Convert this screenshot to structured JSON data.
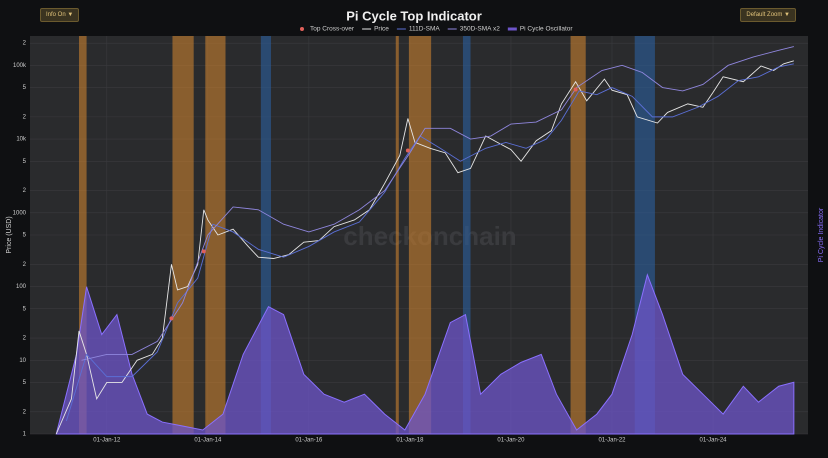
{
  "controls": [
    "Info On ▼",
    "Default Zoom ▼"
  ],
  "chart_data": {
    "type": "line",
    "title": "Pi Cycle Top Indicator",
    "watermark": "checkonchain",
    "y_label": "Price (USD)",
    "y2_label": "Pi Cycle Indicator",
    "log_y": true,
    "grid": true,
    "xlim": [
      2010.48,
      2025.88
    ],
    "xticks": [
      {
        "value": 2012,
        "label": "01-Jan-12"
      },
      {
        "value": 2014,
        "label": "01-Jan-14"
      },
      {
        "value": 2016,
        "label": "01-Jan-16"
      },
      {
        "value": 2018,
        "label": "01-Jan-18"
      },
      {
        "value": 2020,
        "label": "01-Jan-20"
      },
      {
        "value": 2022,
        "label": "01-Jan-22"
      },
      {
        "value": 2024,
        "label": "01-Jan-24"
      }
    ],
    "ylim": [
      1,
      250000
    ],
    "yticks": [
      1,
      2,
      5,
      10,
      {
        "value": 20,
        "label": "2"
      },
      {
        "value": 50,
        "label": "5"
      },
      100,
      {
        "value": 200,
        "label": "2"
      },
      {
        "value": 500,
        "label": "5"
      },
      1000,
      {
        "value": 2000,
        "label": "2"
      },
      {
        "value": 5000,
        "label": "5"
      },
      {
        "value": 10000,
        "label": "10k"
      },
      {
        "value": 20000,
        "label": "2"
      },
      {
        "value": 50000,
        "label": "5"
      },
      {
        "value": 100000,
        "label": "100k"
      },
      {
        "value": 200000,
        "label": "2"
      }
    ],
    "y2lim": [
      0,
      1
    ],
    "shaded_ranges": [
      {
        "x": [
          2011.45,
          2011.6
        ],
        "color": "#c9802e"
      },
      {
        "x": [
          2013.3,
          2013.72
        ],
        "color": "#c9802e"
      },
      {
        "x": [
          2013.95,
          2014.35
        ],
        "color": "#c9802e"
      },
      {
        "x": [
          2015.05,
          2015.25
        ],
        "color": "#2c5f9e"
      },
      {
        "x": [
          2017.72,
          2017.78
        ],
        "color": "#c9802e"
      },
      {
        "x": [
          2017.98,
          2018.42
        ],
        "color": "#c9802e"
      },
      {
        "x": [
          2019.05,
          2019.2
        ],
        "color": "#2c5f9e"
      },
      {
        "x": [
          2021.18,
          2021.48
        ],
        "color": "#c9802e"
      },
      {
        "x": [
          2022.45,
          2022.85
        ],
        "color": "#2c5f9e"
      }
    ],
    "series": [
      {
        "name": "Top Cross-over",
        "type": "scatter",
        "color": "#e0605a",
        "x": [
          2013.28,
          2013.92,
          2017.96,
          2021.28
        ],
        "values": [
          37,
          300,
          7000,
          47000
        ]
      },
      {
        "name": "Price",
        "type": "line",
        "color": "#e6e6e6",
        "x": [
          2011.0,
          2011.3,
          2011.45,
          2011.6,
          2011.8,
          2012.0,
          2012.3,
          2012.6,
          2012.9,
          2013.1,
          2013.28,
          2013.4,
          2013.6,
          2013.8,
          2013.92,
          2014.0,
          2014.2,
          2014.5,
          2014.8,
          2015.0,
          2015.3,
          2015.6,
          2015.9,
          2016.2,
          2016.5,
          2016.9,
          2017.2,
          2017.5,
          2017.8,
          2017.96,
          2018.1,
          2018.4,
          2018.7,
          2018.95,
          2019.2,
          2019.5,
          2019.8,
          2020.0,
          2020.2,
          2020.5,
          2020.8,
          2021.0,
          2021.28,
          2021.5,
          2021.85,
          2022.0,
          2022.3,
          2022.5,
          2022.9,
          2023.1,
          2023.5,
          2023.8,
          2024.0,
          2024.2,
          2024.6,
          2024.95,
          2025.2,
          2025.4,
          2025.6
        ],
        "values": [
          1,
          3,
          25,
          12,
          3,
          5,
          5,
          10,
          12,
          20,
          200,
          90,
          100,
          200,
          1100,
          800,
          500,
          600,
          350,
          250,
          240,
          270,
          400,
          420,
          650,
          800,
          1100,
          2500,
          6000,
          19000,
          9000,
          7500,
          6500,
          3500,
          4000,
          11000,
          8500,
          7200,
          5000,
          9500,
          13000,
          30000,
          60000,
          33000,
          65000,
          46000,
          40000,
          20000,
          16500,
          23000,
          30000,
          27000,
          43000,
          70000,
          60000,
          98000,
          85000,
          105000,
          115000
        ]
      },
      {
        "name": "111D-SMA",
        "type": "line",
        "color": "#5b6fd6",
        "x": [
          2011.2,
          2011.6,
          2012.0,
          2012.5,
          2013.0,
          2013.4,
          2013.8,
          2014.1,
          2014.5,
          2015.0,
          2015.5,
          2016.0,
          2016.5,
          2017.0,
          2017.5,
          2017.9,
          2018.2,
          2018.6,
          2019.0,
          2019.5,
          2019.9,
          2020.3,
          2020.7,
          2021.0,
          2021.35,
          2021.7,
          2022.0,
          2022.4,
          2022.8,
          2023.2,
          2023.7,
          2024.1,
          2024.5,
          2024.9,
          2025.3,
          2025.6
        ],
        "values": [
          1.5,
          12,
          6,
          6,
          13,
          60,
          130,
          700,
          550,
          320,
          250,
          350,
          550,
          750,
          1900,
          5500,
          11000,
          7500,
          5000,
          7500,
          9000,
          7500,
          10000,
          18000,
          45000,
          40000,
          50000,
          38000,
          20000,
          20000,
          27000,
          38000,
          62000,
          70000,
          95000,
          105000
        ]
      },
      {
        "name": "350D-SMA x2",
        "type": "line",
        "color": "#8f86dd",
        "x": [
          2011.5,
          2012.0,
          2012.5,
          2013.0,
          2013.5,
          2014.0,
          2014.5,
          2015.0,
          2015.5,
          2016.0,
          2016.5,
          2017.0,
          2017.5,
          2018.0,
          2018.3,
          2018.8,
          2019.2,
          2019.6,
          2020.0,
          2020.5,
          2021.0,
          2021.3,
          2021.8,
          2022.2,
          2022.6,
          2023.0,
          2023.4,
          2023.8,
          2024.3,
          2024.8,
          2025.3,
          2025.6
        ],
        "values": [
          10,
          12,
          12,
          18,
          60,
          500,
          1200,
          1100,
          700,
          550,
          700,
          1100,
          2000,
          6500,
          14000,
          14000,
          10000,
          11000,
          16000,
          17000,
          25000,
          50000,
          85000,
          100000,
          80000,
          50000,
          45000,
          55000,
          100000,
          130000,
          160000,
          180000
        ]
      },
      {
        "name": "Pi Cycle Oscillator",
        "type": "area",
        "axis": "y2",
        "color": "#6d55c9",
        "x": [
          2011.0,
          2011.4,
          2011.6,
          2011.9,
          2012.2,
          2012.5,
          2012.8,
          2013.1,
          2013.5,
          2013.9,
          2014.3,
          2014.7,
          2015.2,
          2015.5,
          2015.9,
          2016.3,
          2016.7,
          2017.1,
          2017.5,
          2017.9,
          2018.3,
          2018.8,
          2019.1,
          2019.4,
          2019.8,
          2020.2,
          2020.6,
          2020.9,
          2021.3,
          2021.7,
          2022.0,
          2022.4,
          2022.7,
          2023.0,
          2023.4,
          2023.8,
          2024.2,
          2024.6,
          2024.9,
          2025.3,
          2025.6
        ],
        "values": [
          0,
          0.2,
          0.37,
          0.25,
          0.3,
          0.15,
          0.05,
          0.03,
          0.02,
          0.01,
          0.05,
          0.2,
          0.32,
          0.3,
          0.15,
          0.1,
          0.08,
          0.1,
          0.05,
          0.01,
          0.1,
          0.28,
          0.3,
          0.1,
          0.15,
          0.18,
          0.2,
          0.1,
          0.01,
          0.05,
          0.1,
          0.25,
          0.4,
          0.3,
          0.15,
          0.1,
          0.05,
          0.12,
          0.08,
          0.12,
          0.13
        ]
      }
    ]
  }
}
